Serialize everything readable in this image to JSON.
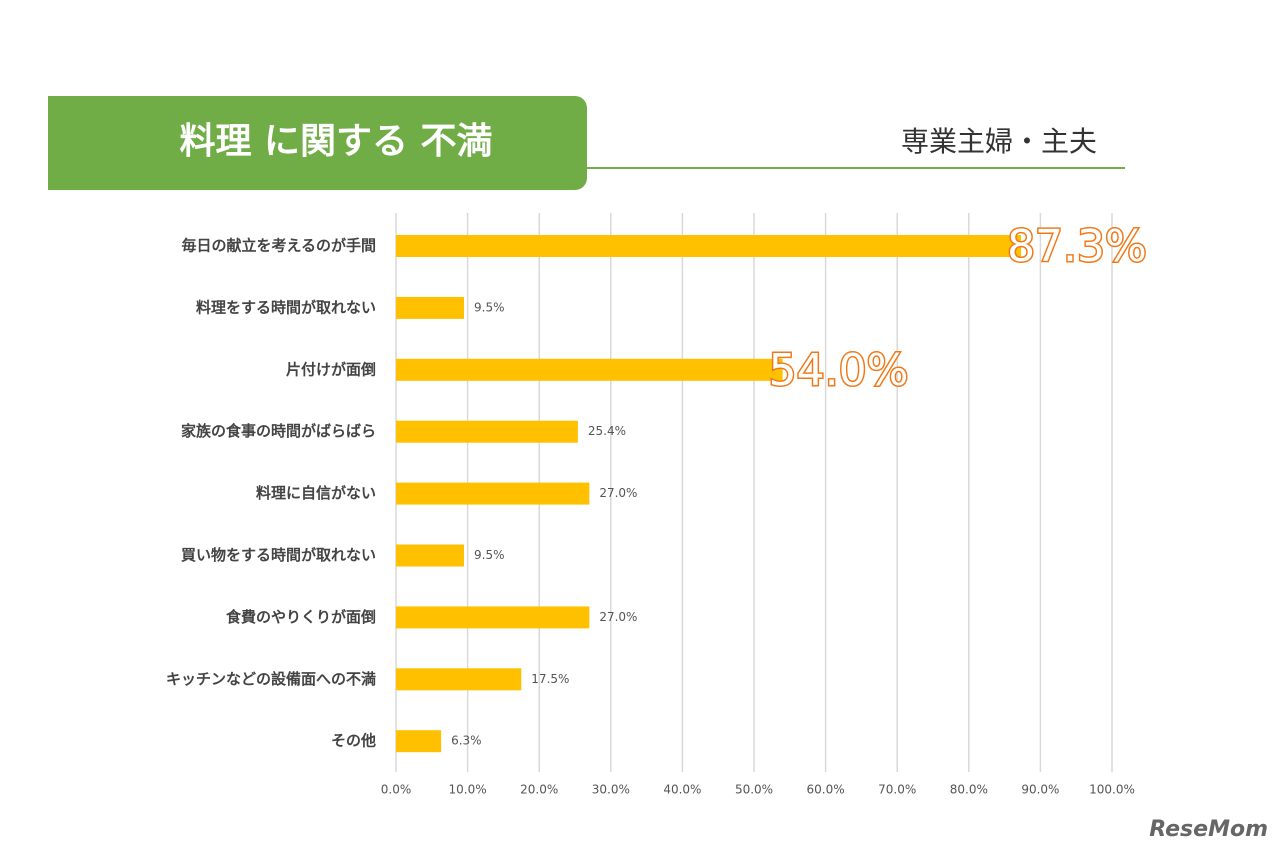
{
  "chart_data": {
    "type": "bar",
    "orientation": "horizontal",
    "title": "料理 に関する 不満",
    "subtitle": "専業主婦・主夫",
    "categories": [
      "毎日の献立を考えるのが手間",
      "料理をする時間が取れない",
      "片付けが面倒",
      "家族の食事の時間がばらばら",
      "料理に自信がない",
      "買い物をする時間が取れない",
      "食費のやりくりが面倒",
      "キッチンなどの設備面への不満",
      "その他"
    ],
    "values": [
      87.3,
      9.5,
      54.0,
      25.4,
      27.0,
      9.5,
      27.0,
      17.5,
      6.3
    ],
    "value_labels": [
      "87.3%",
      "9.5%",
      "54.0%",
      "25.4%",
      "27.0%",
      "9.5%",
      "27.0%",
      "17.5%",
      "6.3%"
    ],
    "color": "#ffc000",
    "xlim": [
      0,
      100
    ],
    "xticks": [
      {
        "value": 0,
        "label": "0.0%"
      },
      {
        "value": 10,
        "label": "10.0%"
      },
      {
        "value": 20,
        "label": "20.0%"
      },
      {
        "value": 30,
        "label": "30.0%"
      },
      {
        "value": 40,
        "label": "40.0%"
      },
      {
        "value": 50,
        "label": "50.0%"
      },
      {
        "value": 60,
        "label": "60.0%"
      },
      {
        "value": 70,
        "label": "70.0%"
      },
      {
        "value": 80,
        "label": "80.0%"
      },
      {
        "value": 90,
        "label": "90.0%"
      },
      {
        "value": 100,
        "label": "100.0%"
      }
    ],
    "grid": true,
    "watermark": "ReseMom"
  }
}
